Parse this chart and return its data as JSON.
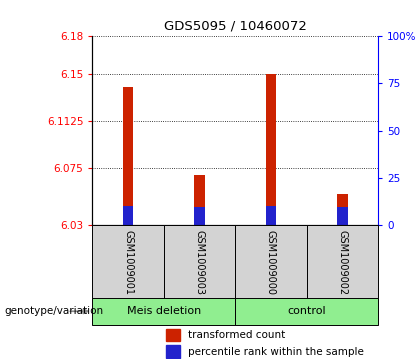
{
  "title": "GDS5095 / 10460072",
  "samples": [
    "GSM1009001",
    "GSM1009003",
    "GSM1009000",
    "GSM1009002"
  ],
  "groups": [
    "Meis deletion",
    "Meis deletion",
    "control",
    "control"
  ],
  "group_labels": [
    "Meis deletion",
    "control"
  ],
  "bar_color": "#cc2200",
  "blue_color": "#2222cc",
  "y_min": 6.03,
  "y_max": 6.18,
  "y_ticks": [
    6.03,
    6.075,
    6.1125,
    6.15,
    6.18
  ],
  "y_tick_labels": [
    "6.03",
    "6.075",
    "6.1125",
    "6.15",
    "6.18"
  ],
  "y2_ticks": [
    0,
    25,
    50,
    75,
    100
  ],
  "y2_tick_labels": [
    "0",
    "25",
    "50",
    "75",
    "100%"
  ],
  "transformed_counts": [
    6.14,
    6.07,
    6.15,
    6.055
  ],
  "percentile_ranks": [
    6.045,
    6.044,
    6.045,
    6.044
  ],
  "base": 6.03,
  "plot_bg": "#ffffff",
  "cell_bg": "#d3d3d3",
  "group_bg": "#90ee90",
  "bar_width": 0.15,
  "legend_items": [
    "transformed count",
    "percentile rank within the sample"
  ]
}
